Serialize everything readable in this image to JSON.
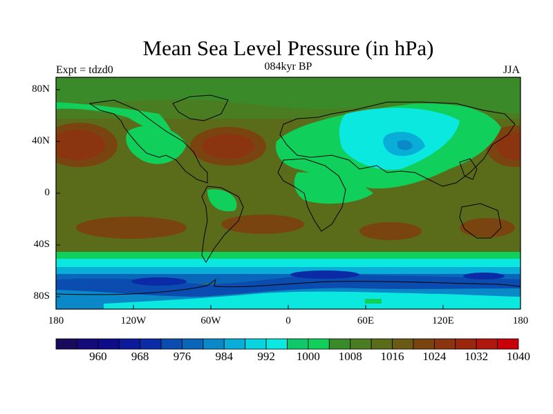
{
  "title": "Mean Sea Level Pressure (in hPa)",
  "subtitle": "084kyr BP",
  "left_label": "Expt = tdzd0",
  "right_label": "JJA",
  "lat_labels": [
    "80N",
    "40N",
    "0",
    "40S",
    "80S"
  ],
  "lon_labels": [
    "180",
    "120W",
    "60W",
    "0",
    "60E",
    "120E",
    "180"
  ],
  "colorbar": {
    "labels": [
      "960",
      "968",
      "976",
      "984",
      "992",
      "1000",
      "1008",
      "1016",
      "1024",
      "1032",
      "1040"
    ],
    "colors": [
      "#1a0a5e",
      "#140a7a",
      "#0d0d8a",
      "#0a1a99",
      "#0b2aa6",
      "#0b4cb0",
      "#0a66b8",
      "#0a88c8",
      "#08aed8",
      "#0ad4e0",
      "#0be8e0",
      "#0fc86a",
      "#10cf5a",
      "#3a8a2a",
      "#4a7d22",
      "#5a6c1a",
      "#6a5a14",
      "#7a4410",
      "#8a3510",
      "#9a260e",
      "#b0180e",
      "#c8000a"
    ]
  },
  "colors": {
    "background": "#5a6c1a",
    "high": "#8a3510",
    "mid_high": "#7a4410",
    "green": "#2fbf4f",
    "light_green": "#10cf5a",
    "cyan": "#0be8e0",
    "teal": "#08aed8",
    "blue": "#0a66b8",
    "deep_blue": "#0b2aa6"
  }
}
